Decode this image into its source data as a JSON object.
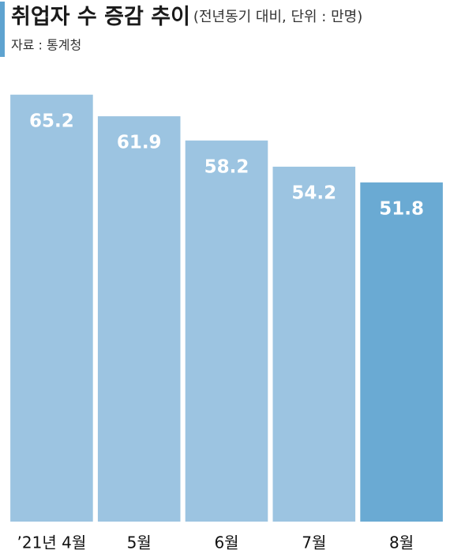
{
  "chart_data": {
    "type": "bar",
    "title": "취업자 수 증감 추이",
    "subtitle": "(전년동기 대비, 단위 : 만명)",
    "source": "자료 : 통계청",
    "categories": [
      "’21년 4월",
      "5월",
      "6월",
      "7월",
      "8월"
    ],
    "values": [
      65.2,
      61.9,
      58.2,
      54.2,
      51.8
    ],
    "colors": [
      "#9cc4e1",
      "#9cc4e1",
      "#9cc4e1",
      "#9cc4e1",
      "#6aaad3"
    ],
    "ylim": [
      0,
      70
    ]
  }
}
